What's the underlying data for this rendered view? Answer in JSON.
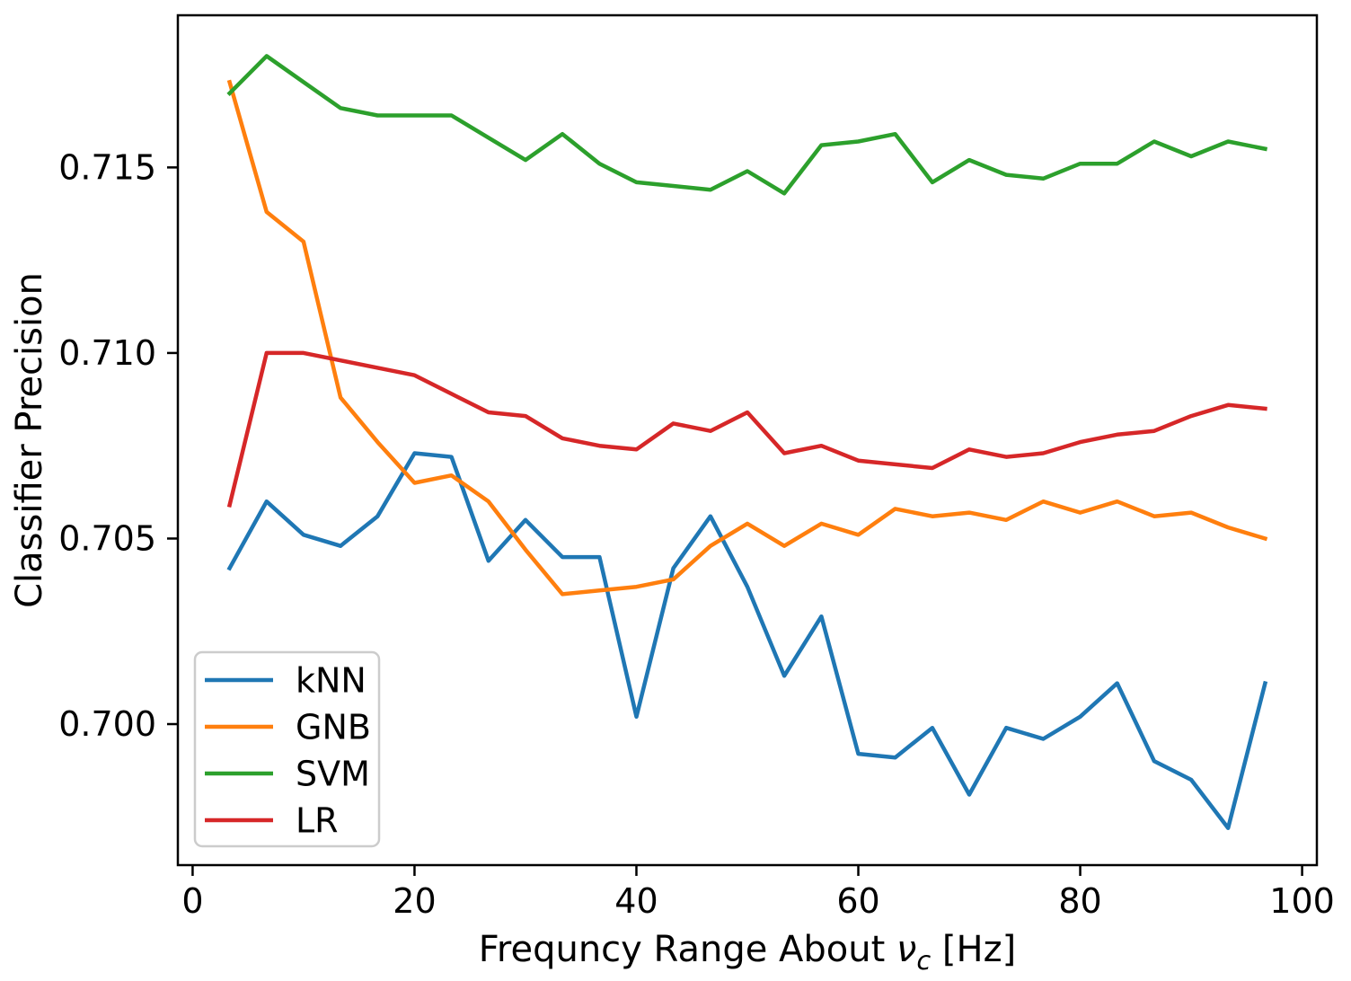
{
  "figure": {
    "background": "#ffffff",
    "axis_color": "#000000"
  },
  "chart_data": {
    "type": "line",
    "title": "",
    "xlabel": "Frequncy Range About ν_c [Hz]",
    "xlabel_parts": {
      "prefix": "Frequncy Range About ",
      "symbol": "ν",
      "subscript": "c",
      "suffix": " [Hz]"
    },
    "ylabel": "Classifier Precision",
    "grid": false,
    "legend_position": "lower-left",
    "xlim": [
      -1.33,
      101.33
    ],
    "ylim": [
      0.6962,
      0.7191
    ],
    "xticks": [
      {
        "v": 0,
        "label": "0"
      },
      {
        "v": 20,
        "label": "20"
      },
      {
        "v": 40,
        "label": "40"
      },
      {
        "v": 60,
        "label": "60"
      },
      {
        "v": 80,
        "label": "80"
      },
      {
        "v": 100,
        "label": "100"
      }
    ],
    "yticks": [
      {
        "v": 0.7,
        "label": "0.700"
      },
      {
        "v": 0.705,
        "label": "0.705"
      },
      {
        "v": 0.71,
        "label": "0.710"
      },
      {
        "v": 0.715,
        "label": "0.715"
      }
    ],
    "x": [
      3.33,
      6.67,
      10,
      13.33,
      16.67,
      20,
      23.33,
      26.67,
      30,
      33.33,
      36.67,
      40,
      43.33,
      46.67,
      50,
      53.33,
      56.67,
      60,
      63.33,
      66.67,
      70,
      73.33,
      76.67,
      80,
      83.33,
      86.67,
      90,
      93.33,
      96.67
    ],
    "series": [
      {
        "name": "kNN",
        "color": "#1f77b4",
        "values": [
          0.7042,
          0.706,
          0.7051,
          0.7048,
          0.7056,
          0.7073,
          0.7072,
          0.7044,
          0.7055,
          0.7045,
          0.7045,
          0.7002,
          0.7042,
          0.7056,
          0.7037,
          0.7013,
          0.7029,
          0.6992,
          0.6991,
          0.6999,
          0.6981,
          0.6999,
          0.6996,
          0.7002,
          0.7011,
          0.699,
          0.6985,
          0.6972,
          0.7011
        ]
      },
      {
        "name": "GNB",
        "color": "#ff7f0e",
        "values": [
          0.7173,
          0.7138,
          0.713,
          0.7088,
          0.7076,
          0.7065,
          0.7067,
          0.706,
          0.7047,
          0.7035,
          0.7036,
          0.7037,
          0.7039,
          0.7048,
          0.7054,
          0.7048,
          0.7054,
          0.7051,
          0.7058,
          0.7056,
          0.7057,
          0.7055,
          0.706,
          0.7057,
          0.706,
          0.7056,
          0.7057,
          0.7053,
          0.705
        ]
      },
      {
        "name": "SVM",
        "color": "#2ca02c",
        "values": [
          0.717,
          0.718,
          0.7173,
          0.7166,
          0.7164,
          0.7164,
          0.7164,
          0.7158,
          0.7152,
          0.7159,
          0.7151,
          0.7146,
          0.7145,
          0.7144,
          0.7149,
          0.7143,
          0.7156,
          0.7157,
          0.7159,
          0.7146,
          0.7152,
          0.7148,
          0.7147,
          0.7151,
          0.7151,
          0.7157,
          0.7153,
          0.7157,
          0.7155
        ]
      },
      {
        "name": "LR",
        "color": "#d62728",
        "values": [
          0.7059,
          0.71,
          0.71,
          0.7098,
          0.7096,
          0.7094,
          0.7089,
          0.7084,
          0.7083,
          0.7077,
          0.7075,
          0.7074,
          0.7081,
          0.7079,
          0.7084,
          0.7073,
          0.7075,
          0.7071,
          0.707,
          0.7069,
          0.7074,
          0.7072,
          0.7073,
          0.7076,
          0.7078,
          0.7079,
          0.7083,
          0.7086,
          0.7085
        ]
      }
    ]
  }
}
